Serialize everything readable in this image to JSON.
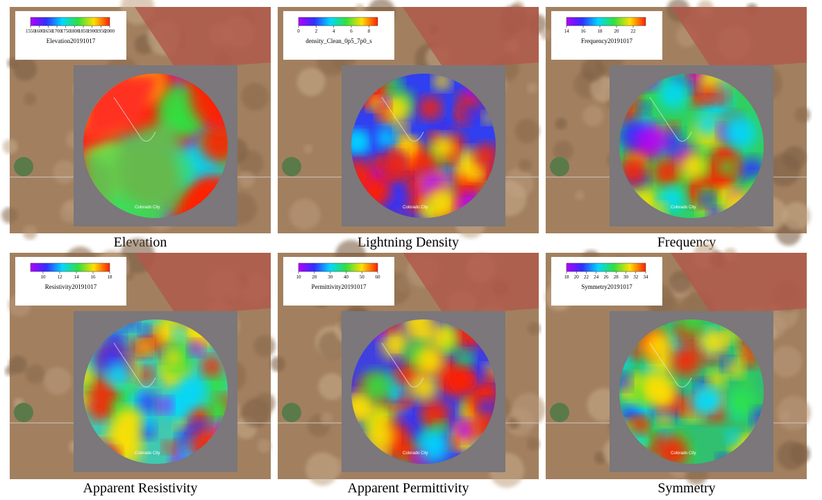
{
  "panels": [
    {
      "caption": "Elevation",
      "legend_title": "Elevation20191017",
      "clim": [
        1550,
        2000
      ],
      "ticks": [
        1550,
        1600,
        1650,
        1700,
        1750,
        1800,
        1850,
        1900,
        1950,
        2000
      ],
      "place": "Colorado City"
    },
    {
      "caption": "Lightning  Density",
      "legend_title": "density_Clean_0p5_7p0_s",
      "clim": [
        0,
        9
      ],
      "ticks": [
        0,
        2,
        4,
        6,
        8
      ],
      "place": "Colorado City"
    },
    {
      "caption": "Frequency",
      "legend_title": "Frequency20191017",
      "clim": [
        14,
        23.5
      ],
      "ticks": [
        14,
        16,
        18,
        20,
        22
      ],
      "place": "Colorado City"
    },
    {
      "caption": "Apparent  Resistivity",
      "legend_title": "Resistivity20191017",
      "clim": [
        8.5,
        18
      ],
      "ticks": [
        10,
        12,
        14,
        16,
        18
      ],
      "place": "Colorado City"
    },
    {
      "caption": "Apparent  Permittivity",
      "legend_title": "Permittivity20191017",
      "clim": [
        10,
        60
      ],
      "ticks": [
        10,
        20,
        30,
        40,
        50,
        60
      ],
      "place": "Colorado City"
    },
    {
      "caption": "Symmetry",
      "legend_title": "Symmetry20191017",
      "clim": [
        18,
        34
      ],
      "ticks": [
        18,
        20,
        22,
        24,
        26,
        28,
        30,
        32,
        34
      ],
      "place": "Colorado City"
    }
  ]
}
